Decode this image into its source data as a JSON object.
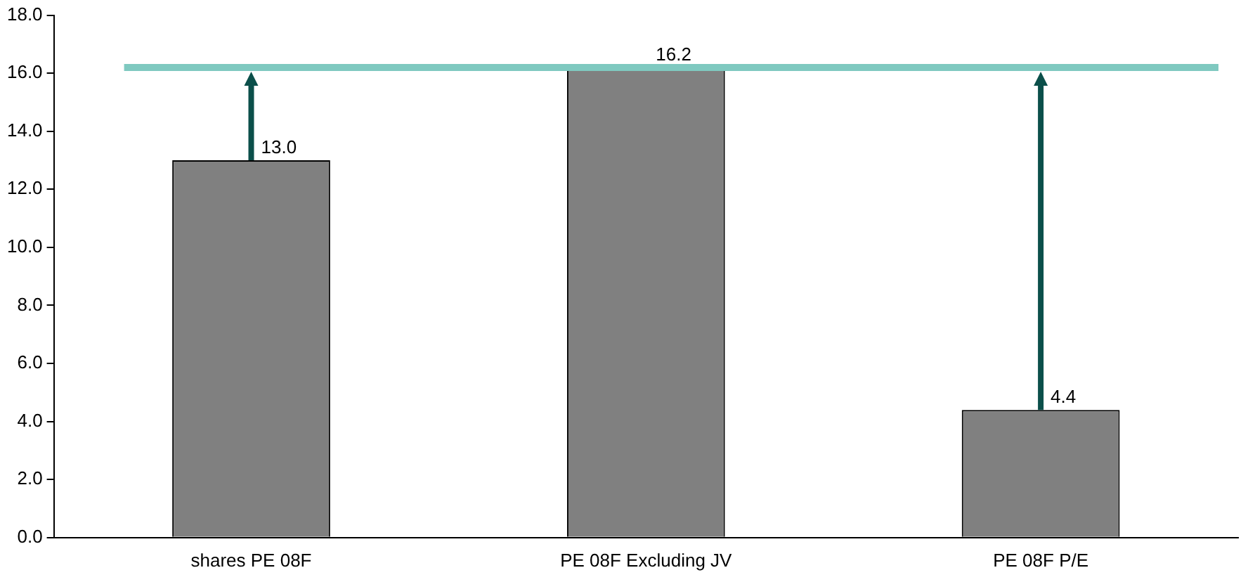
{
  "chart_data": {
    "type": "bar",
    "categories": [
      "shares PE 08F",
      "PE 08F Excluding JV",
      "PE 08F P/E"
    ],
    "values": [
      13.0,
      16.2,
      4.4
    ],
    "color": "#808080",
    "value_labels": [
      "13.0",
      "16.2",
      "4.4"
    ],
    "ylim": [
      0,
      18
    ],
    "yticks": [
      {
        "value": 0,
        "label": "0.0"
      },
      {
        "value": 2,
        "label": "2.0"
      },
      {
        "value": 4,
        "label": "4.0"
      },
      {
        "value": 6,
        "label": "6.0"
      },
      {
        "value": 8,
        "label": "8.0"
      },
      {
        "value": 10,
        "label": "10.0"
      },
      {
        "value": 12,
        "label": "12.0"
      },
      {
        "value": 14,
        "label": "14.0"
      },
      {
        "value": 16,
        "label": "16.0"
      },
      {
        "value": 18,
        "label": "18.0"
      }
    ],
    "ref_lines": [
      {
        "axis": "y",
        "value": 16.2,
        "color": "#7fc9c0"
      }
    ],
    "grid": false,
    "legend": false
  }
}
